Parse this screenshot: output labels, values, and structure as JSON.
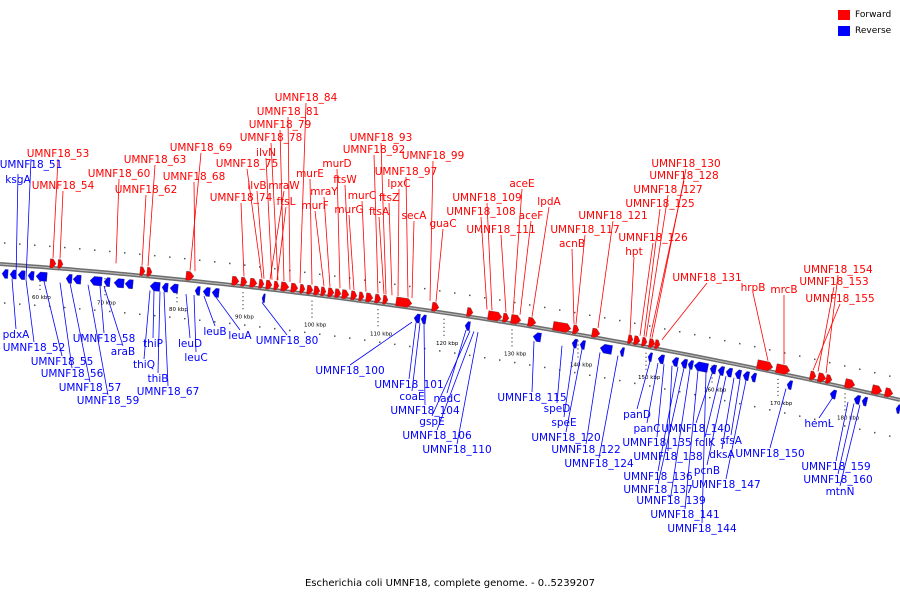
{
  "legend": {
    "forward_label": "Forward",
    "reverse_label": "Reverse",
    "forward_color": "#ff0000",
    "reverse_color": "#0000ff"
  },
  "caption": "Escherichia coli UMNF18, complete genome. - 0..5239207",
  "ticks": [
    {
      "label": "60 kbp"
    },
    {
      "label": "70 kbp"
    },
    {
      "label": "80 kbp"
    },
    {
      "label": "90 kbp"
    },
    {
      "label": "100 kbp"
    },
    {
      "label": "110 kbp"
    },
    {
      "label": "120 kbp"
    },
    {
      "label": "130 kbp"
    },
    {
      "label": "140 kbp"
    },
    {
      "label": "150 kbp"
    },
    {
      "label": "160 kbp"
    },
    {
      "label": "170 kbp"
    },
    {
      "label": "180 kbp"
    }
  ],
  "forward_labels": [
    "UMNF18_84",
    "UMNF18_81",
    "UMNF18_79",
    "UMNF18_78",
    "ilvN",
    "UMNF18_75",
    "ilvB",
    "mraW",
    "ftsL",
    "UMNF18_74",
    "UMNF18_69",
    "UMNF18_68",
    "UMNF18_63",
    "UMNF18_62",
    "UMNF18_60",
    "UMNF18_53",
    "UMNF18_54",
    "murE",
    "murF",
    "mraY",
    "murD",
    "ftsW",
    "murG",
    "murC",
    "ftsA",
    "ftsZ",
    "lpxC",
    "UMNF18_93",
    "UMNF18_92",
    "UMNF18_97",
    "UMNF18_99",
    "secA",
    "guaC",
    "UMNF18_109",
    "UMNF18_108",
    "UMNF18_111",
    "aceE",
    "aceF",
    "lpdA",
    "UMNF18_117",
    "UMNF18_121",
    "acnB",
    "hpt",
    "UMNF18_130",
    "UMNF18_128",
    "UMNF18_127",
    "UMNF18_125",
    "UMNF18_126",
    "UMNF18_131",
    "hrpB",
    "mrcB",
    "UMNF18_154",
    "UMNF18_153",
    "UMNF18_155"
  ],
  "reverse_labels": [
    "UMNF18_51",
    "ksgA",
    "pdxA",
    "UMNF18_52",
    "UMNF18_55",
    "UMNF18_56",
    "UMNF18_57",
    "UMNF18_59",
    "UMNF18_58",
    "araB",
    "thiP",
    "thiQ",
    "thiB",
    "UMNF18_67",
    "leuD",
    "leuC",
    "leuB",
    "leuA",
    "UMNF18_80",
    "UMNF18_100",
    "UMNF18_101",
    "coaE",
    "UMNF18_104",
    "nadC",
    "gspE",
    "UMNF18_106",
    "UMNF18_110",
    "UMNF18_115",
    "speD",
    "speE",
    "UMNF18_120",
    "UMNF18_122",
    "UMNF18_124",
    "panD",
    "panC",
    "UMNF18_135",
    "UMNF18_138",
    "UMNF18_136",
    "UMNF18_137",
    "UMNF18_139",
    "UMNF18_141",
    "UMNF18_144",
    "UMNF18_140",
    "folK",
    "pcnB",
    "dksA",
    "sfsA",
    "UMNF18_147",
    "UMNF18_150",
    "hemL",
    "UMNF18_159",
    "UMNF18_160",
    "mtnN"
  ]
}
